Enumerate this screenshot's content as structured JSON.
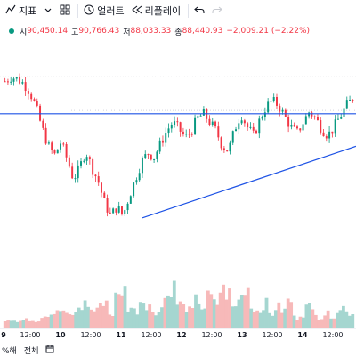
{
  "toolbar": {
    "indicators_label": "지표",
    "alert_label": "얼러트",
    "replay_label": "리플레이"
  },
  "ohlc": {
    "open_label": "시",
    "open": "90,450.14",
    "high_label": "고",
    "high": "90,766.43",
    "low_label": "저",
    "low": "88,033.33",
    "close_label": "종",
    "close": "88,440.93",
    "change": "−2,009.21 (−2.22%)"
  },
  "colors": {
    "up": "#089981",
    "down": "#f23645",
    "line": "#1e53e5"
  },
  "chart_data": {
    "type": "candlestick",
    "x_ticks": [
      "9",
      "12:00",
      "10",
      "12:00",
      "11",
      "12:00",
      "12",
      "12:00",
      "13",
      "12:00",
      "14",
      "12:00"
    ],
    "close_path": [
      90.8,
      91.0,
      90.9,
      90.7,
      90.3,
      89.6,
      88.6,
      87.8,
      87.4,
      88.0,
      87.2,
      86.3,
      86.8,
      87.6,
      86.8,
      86.2,
      85.2,
      84.6,
      85.0,
      84.6,
      85.5,
      86.3,
      87.1,
      87.5,
      87.3,
      87.9,
      88.5,
      88.9,
      88.6,
      88.2,
      88.5,
      89.1,
      89.3,
      88.9,
      88.5,
      87.8,
      87.6,
      88.6,
      89.3,
      88.7,
      88.3,
      89.0,
      89.6,
      89.9,
      89.7,
      89.2,
      88.7,
      88.4,
      88.9,
      89.4,
      89.1,
      88.6,
      88.3,
      88.7,
      89.2,
      89.7,
      90.0
    ],
    "volume_levels": [
      0.12,
      0.1,
      0.08,
      0.15,
      0.12,
      0.1,
      0.18,
      0.2,
      0.22,
      0.25,
      0.18,
      0.2,
      0.3,
      0.35,
      0.25,
      0.3,
      0.4,
      0.2,
      0.45,
      0.55,
      0.3,
      0.25,
      0.4,
      0.35,
      0.2,
      0.3,
      0.45,
      0.6,
      0.35,
      0.3,
      0.25,
      0.4,
      0.3,
      0.45,
      0.35,
      0.55,
      0.5,
      0.3,
      0.45,
      0.6,
      0.3,
      0.25,
      0.35,
      0.2,
      0.3,
      0.25,
      0.4,
      0.15,
      0.2,
      0.3,
      0.25,
      0.15,
      0.2,
      0.18,
      0.25,
      0.3,
      0.2
    ],
    "resistance_level": 89.3,
    "trendline": {
      "from": 84.5,
      "to": 87.8
    }
  },
  "bottombar": {
    "range_1": "%해",
    "range_2": "전체"
  }
}
